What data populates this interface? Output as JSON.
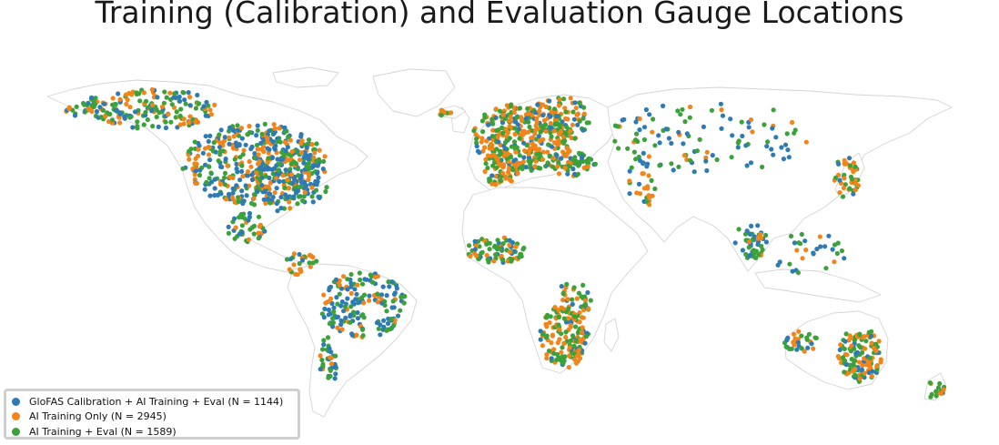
{
  "title": "Training (Calibration) and Evaluation Gauge Locations",
  "legend": {
    "items": [
      {
        "label": "GloFAS Calibration + AI Training + Eval (N = 1144)",
        "color": "#2e7bb4"
      },
      {
        "label": "AI Training Only (N = 2945)",
        "color": "#f2851a"
      },
      {
        "label": "AI Training + Eval (N = 1589)",
        "color": "#3ba23a"
      }
    ]
  },
  "map": {
    "land_stroke": "#d4d4d4",
    "land_fill": "#ffffff",
    "background": "#ffffff"
  }
}
